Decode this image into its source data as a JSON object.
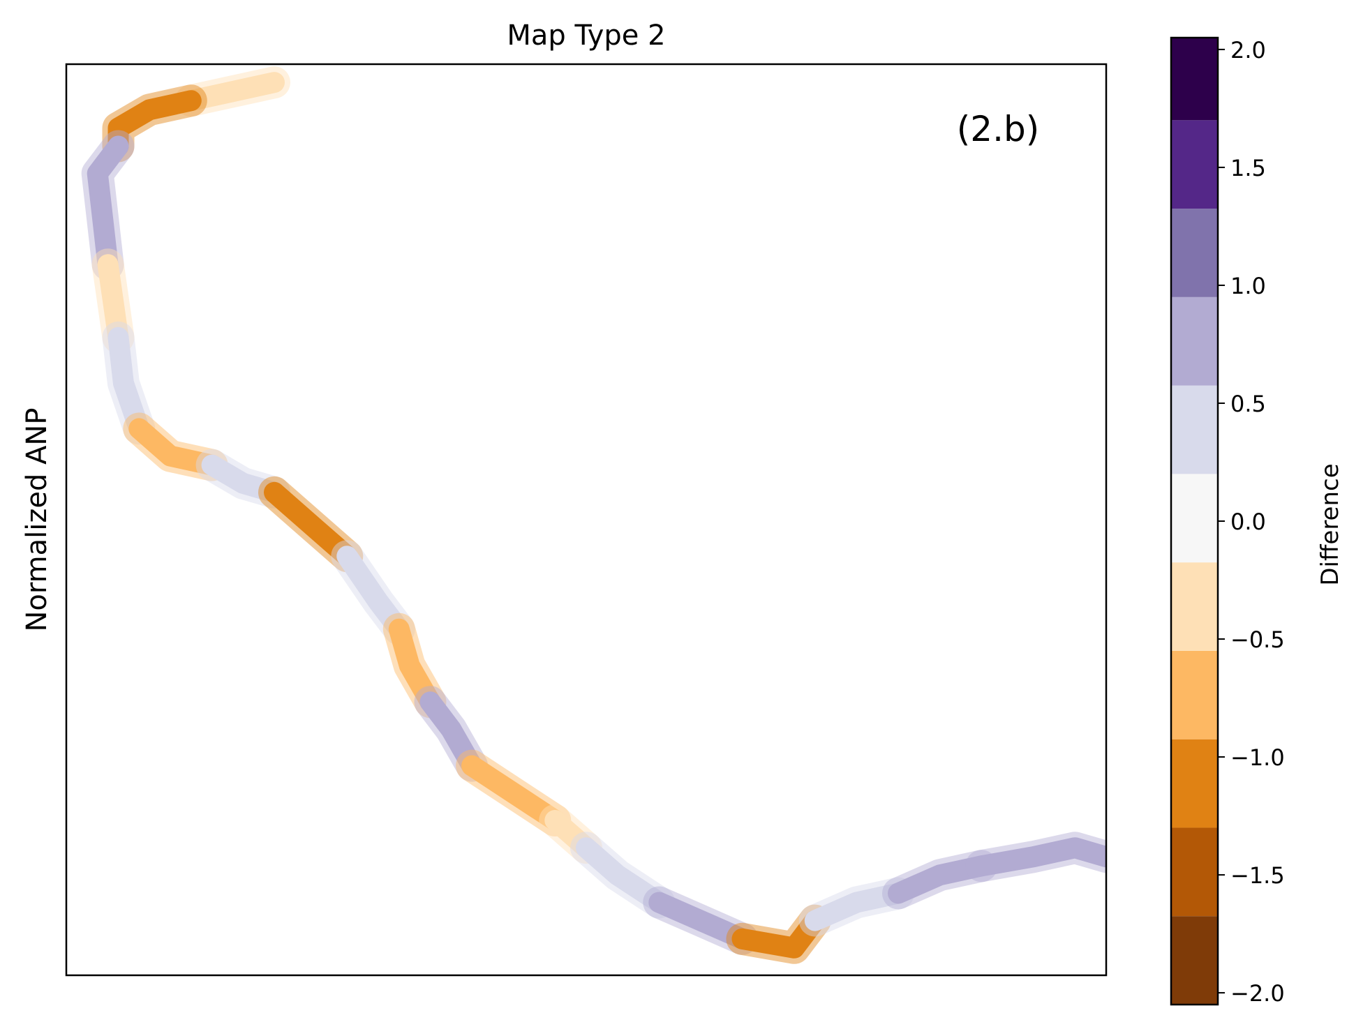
{
  "chart_data": {
    "type": "heatmap",
    "title": "Map Type 2",
    "ylabel": "Normalized ANP",
    "xlabel": "",
    "annotation": "(2.b)",
    "grid": false,
    "x_ticks_visible": false,
    "y_ticks_visible": false,
    "colorbar": {
      "label": "Difference",
      "range": [
        -2.05,
        2.05
      ],
      "boundaries": [
        -2.05,
        -1.675,
        -1.3,
        -0.925,
        -0.55,
        -0.175,
        0.2,
        0.575,
        0.95,
        1.325,
        1.7,
        2.05
      ],
      "colors": [
        "#7f3b08",
        "#b35806",
        "#e08214",
        "#fdb863",
        "#fee0b6",
        "#f7f7f7",
        "#d8daeb",
        "#b2abd2",
        "#8073ac",
        "#542788",
        "#2d004b"
      ],
      "ticks": [
        -2.0,
        -1.5,
        -1.0,
        -0.5,
        0.0,
        0.5,
        1.0,
        1.5,
        2.0
      ],
      "tick_labels": [
        "−2.0",
        "−1.5",
        "−1.0",
        "−0.5",
        "0.0",
        "0.5",
        "1.0",
        "1.5",
        "2.0"
      ]
    },
    "river_segments": [
      {
        "value": -0.4,
        "path": [
          [
            0.2,
            0.02
          ],
          [
            0.16,
            0.03
          ],
          [
            0.12,
            0.04
          ]
        ]
      },
      {
        "value": -1.2,
        "path": [
          [
            0.12,
            0.04
          ],
          [
            0.08,
            0.05
          ],
          [
            0.05,
            0.07
          ],
          [
            0.05,
            0.09
          ]
        ]
      },
      {
        "value": 0.6,
        "path": [
          [
            0.05,
            0.09
          ],
          [
            0.03,
            0.12
          ],
          [
            0.035,
            0.17
          ],
          [
            0.04,
            0.22
          ]
        ]
      },
      {
        "value": -0.3,
        "path": [
          [
            0.04,
            0.22
          ],
          [
            0.045,
            0.26
          ],
          [
            0.05,
            0.3
          ]
        ]
      },
      {
        "value": 0.4,
        "path": [
          [
            0.05,
            0.3
          ],
          [
            0.055,
            0.35
          ],
          [
            0.07,
            0.4
          ]
        ]
      },
      {
        "value": -0.8,
        "path": [
          [
            0.07,
            0.4
          ],
          [
            0.1,
            0.43
          ],
          [
            0.14,
            0.44
          ]
        ]
      },
      {
        "value": 0.3,
        "path": [
          [
            0.14,
            0.44
          ],
          [
            0.17,
            0.46
          ],
          [
            0.2,
            0.47
          ]
        ]
      },
      {
        "value": -1.1,
        "path": [
          [
            0.2,
            0.47
          ],
          [
            0.24,
            0.51
          ],
          [
            0.27,
            0.54
          ]
        ]
      },
      {
        "value": 0.3,
        "path": [
          [
            0.27,
            0.54
          ],
          [
            0.3,
            0.59
          ],
          [
            0.32,
            0.62
          ]
        ]
      },
      {
        "value": -0.7,
        "path": [
          [
            0.32,
            0.62
          ],
          [
            0.33,
            0.66
          ],
          [
            0.35,
            0.7
          ]
        ]
      },
      {
        "value": 0.9,
        "path": [
          [
            0.35,
            0.7
          ],
          [
            0.37,
            0.73
          ],
          [
            0.39,
            0.77
          ]
        ]
      },
      {
        "value": -0.8,
        "path": [
          [
            0.39,
            0.77
          ],
          [
            0.43,
            0.8
          ],
          [
            0.47,
            0.83
          ]
        ]
      },
      {
        "value": -0.3,
        "path": [
          [
            0.47,
            0.83
          ],
          [
            0.5,
            0.86
          ]
        ]
      },
      {
        "value": 0.5,
        "path": [
          [
            0.5,
            0.86
          ],
          [
            0.53,
            0.89
          ],
          [
            0.57,
            0.92
          ]
        ]
      },
      {
        "value": 0.9,
        "path": [
          [
            0.57,
            0.92
          ],
          [
            0.61,
            0.94
          ],
          [
            0.65,
            0.96
          ]
        ]
      },
      {
        "value": -1.1,
        "path": [
          [
            0.65,
            0.96
          ],
          [
            0.7,
            0.97
          ],
          [
            0.72,
            0.94
          ]
        ]
      },
      {
        "value": 0.5,
        "path": [
          [
            0.72,
            0.94
          ],
          [
            0.76,
            0.92
          ],
          [
            0.8,
            0.91
          ]
        ]
      },
      {
        "value": 0.6,
        "path": [
          [
            0.8,
            0.91
          ],
          [
            0.84,
            0.89
          ],
          [
            0.88,
            0.88
          ]
        ]
      },
      {
        "value": 0.7,
        "path": [
          [
            0.88,
            0.88
          ],
          [
            0.93,
            0.87
          ],
          [
            0.97,
            0.86
          ],
          [
            1.0,
            0.87
          ]
        ]
      }
    ]
  }
}
